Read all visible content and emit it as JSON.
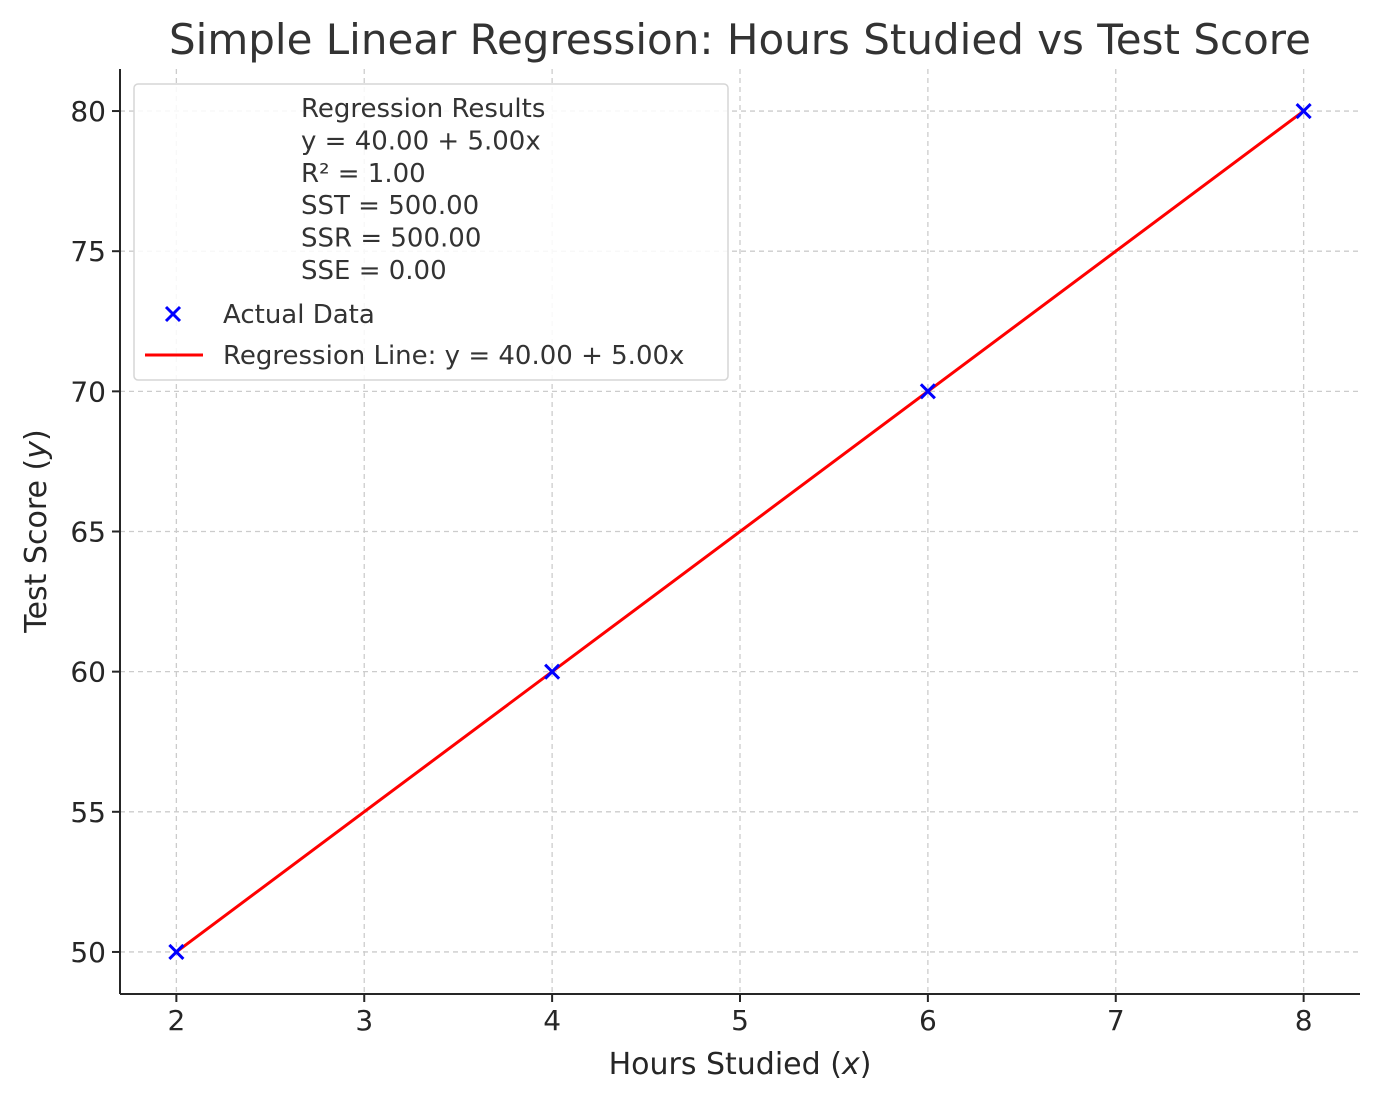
{
  "chart_data": {
    "type": "scatter",
    "title": "Simple Linear Regression: Hours Studied vs Test Score",
    "xlabel_prefix": "Hours Studied (",
    "xlabel_var": "x",
    "xlabel_suffix": ")",
    "ylabel_prefix": "Test Score (",
    "ylabel_var": "y",
    "ylabel_suffix": ")",
    "xlim": [
      1.7,
      8.3
    ],
    "ylim": [
      48.5,
      81.5
    ],
    "xticks": [
      2,
      3,
      4,
      5,
      6,
      7,
      8
    ],
    "yticks": [
      50,
      55,
      60,
      65,
      70,
      75,
      80
    ],
    "grid": true,
    "legend_position": "upper-left",
    "series": [
      {
        "name": "Actual Data",
        "kind": "scatter",
        "marker": "x",
        "color": "#0000ff",
        "x": [
          2,
          4,
          6,
          8
        ],
        "y": [
          50,
          60,
          70,
          80
        ]
      },
      {
        "name": "Regression Line: y = 40.00 + 5.00x",
        "kind": "line",
        "color": "#ff0000",
        "x": [
          2,
          8
        ],
        "y": [
          50,
          80
        ]
      }
    ],
    "legend_results": [
      "Regression Results",
      "y = 40.00 + 5.00x",
      "R² = 1.00",
      "SST = 500.00",
      "SSR = 500.00",
      "SSE = 0.00"
    ]
  }
}
